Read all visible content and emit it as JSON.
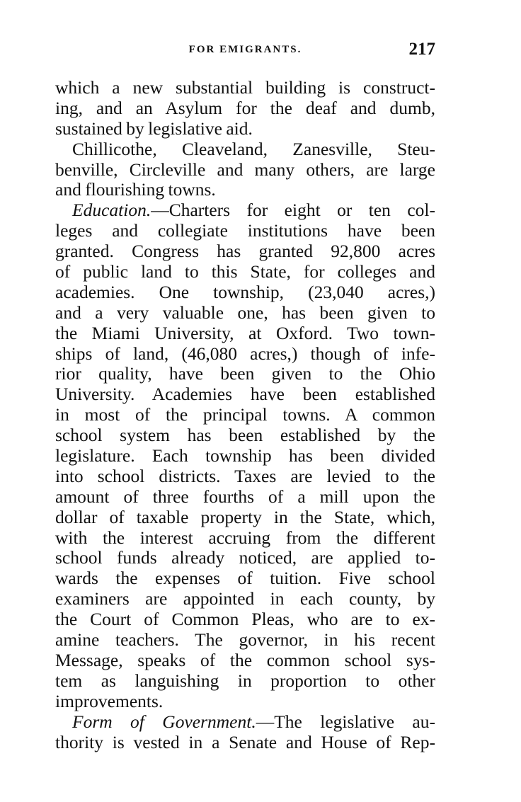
{
  "header": {
    "running_head": "FOR EMIGRANTS.",
    "page_number": "217"
  },
  "lines": [
    {
      "text": "which a new substantial building is construct-"
    },
    {
      "text": "ing, and an Asylum for the deaf and dumb,"
    },
    {
      "text": "sustained by legislative aid.",
      "last": true
    },
    {
      "text": "Chillicothe, Cleaveland, Zanesville, Steu-",
      "indent": true
    },
    {
      "text": "benville, Circleville and many others, are large"
    },
    {
      "text": "and flourishing towns.",
      "last": true
    },
    {
      "italic": "Education.",
      "text": "—Charters for eight or ten col-",
      "indent": true
    },
    {
      "text": "leges and collegiate institutions have been"
    },
    {
      "text": "granted.  Congress has granted 92,800 acres"
    },
    {
      "text": "of public land to this State, for colleges and"
    },
    {
      "text": "academies.  One township, (23,040 acres,)"
    },
    {
      "text": "and a very valuable one, has been given to"
    },
    {
      "text": "the Miami University, at Oxford.  Two town-"
    },
    {
      "text": "ships of land, (46,080 acres,) though of infe-"
    },
    {
      "text": "rior quality, have been given to the Ohio"
    },
    {
      "text": "University.  Academies have been established"
    },
    {
      "text": "in most of the principal towns.  A common"
    },
    {
      "text": "school system has been established by the"
    },
    {
      "text": "legislature.  Each township has been divided"
    },
    {
      "text": "into school districts.  Taxes are levied to the"
    },
    {
      "text": "amount of three fourths of a mill upon the"
    },
    {
      "text": "dollar of taxable property in the State, which,"
    },
    {
      "text": "with the interest accruing from the different"
    },
    {
      "text": "school funds already noticed, are applied to-"
    },
    {
      "text": "wards the expenses of tuition.  Five school"
    },
    {
      "text": "examiners are appointed in each county, by"
    },
    {
      "text": "the Court of Common Pleas, who are to ex-"
    },
    {
      "text": "amine teachers.  The governor, in his recent"
    },
    {
      "text": "Message, speaks of the common school sys-"
    },
    {
      "text": "tem as languishing in proportion to other"
    },
    {
      "text": "improvements.",
      "last": true
    },
    {
      "italic": "Form of Government.",
      "text": "—The legislative au-",
      "indent": true
    },
    {
      "text": "thority is vested in a Senate and House of Rep-"
    }
  ]
}
